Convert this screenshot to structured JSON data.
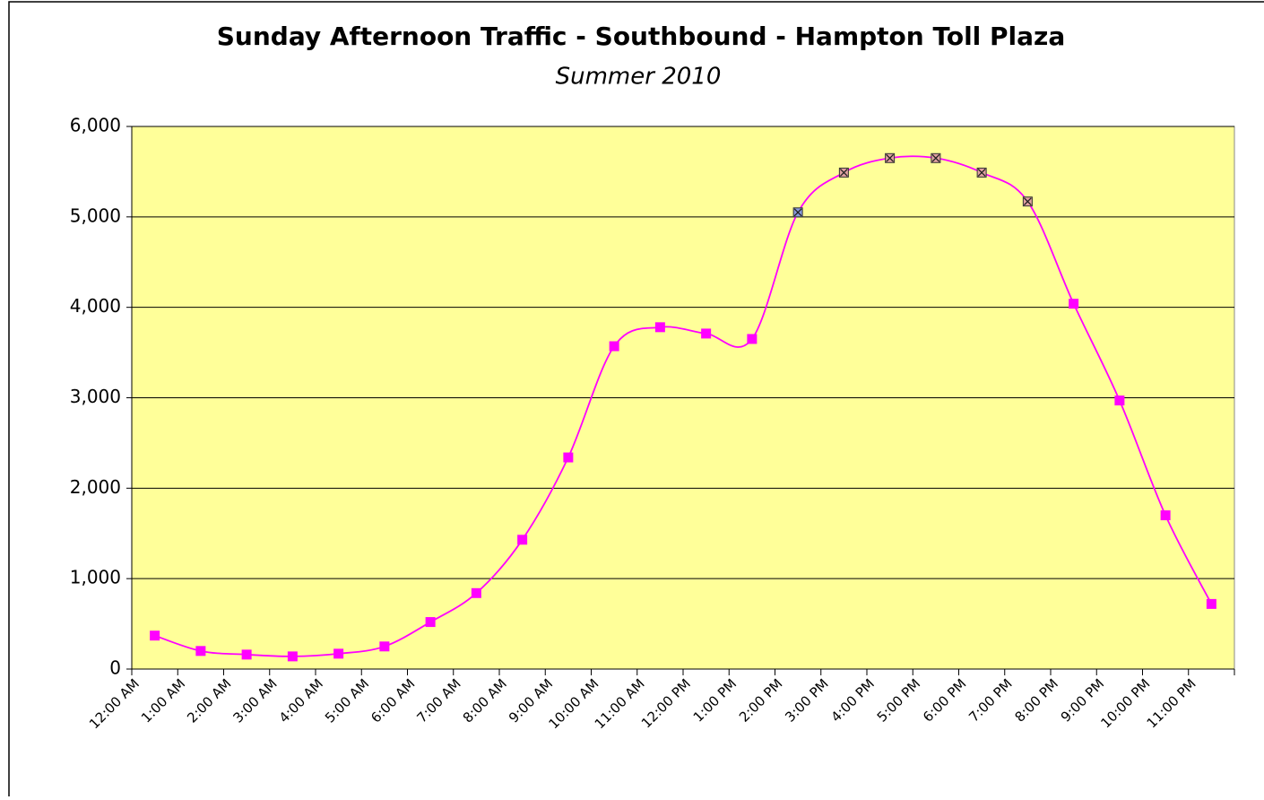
{
  "chart_data": {
    "type": "line",
    "title": "Sunday Afternoon Traffic - Southbound - Hampton Toll Plaza",
    "subtitle": "Summer 2010",
    "categories": [
      "12:00 AM",
      "1:00 AM",
      "2:00 AM",
      "3:00 AM",
      "4:00 AM",
      "5:00 AM",
      "6:00 AM",
      "7:00 AM",
      "8:00 AM",
      "9:00 AM",
      "10:00 AM",
      "11:00 AM",
      "12:00 PM",
      "1:00 PM",
      "2:00 PM",
      "3:00 PM",
      "4:00 PM",
      "5:00 PM",
      "6:00 PM",
      "7:00 PM",
      "8:00 PM",
      "9:00 PM",
      "10:00 PM",
      "11:00 PM"
    ],
    "series": [
      {
        "color": "#ff00ff",
        "values": [
          370,
          200,
          160,
          140,
          170,
          250,
          520,
          840,
          1430,
          2340,
          3570,
          3780,
          3710,
          3650,
          5050,
          5490,
          5650,
          5650,
          5490,
          5170,
          4040,
          2970,
          1700,
          720
        ],
        "marker_colors": [
          "#ff00ff",
          "#ff00ff",
          "#ff00ff",
          "#ff00ff",
          "#ff00ff",
          "#ff00ff",
          "#ff00ff",
          "#ff00ff",
          "#ff00ff",
          "#ff00ff",
          "#ff00ff",
          "#ff00ff",
          "#ff00ff",
          "#ff00ff",
          "#8899dd",
          "#e0a0a0",
          "#e0a0a0",
          "#e0a0a0",
          "#e0a0a0",
          "#e0a0a0",
          "#ff00ff",
          "#ff00ff",
          "#ff00ff",
          "#ff00ff"
        ]
      }
    ],
    "ylim": [
      0,
      6000
    ],
    "yticks": [
      0,
      {
        "value": 1000,
        "label": "1,000"
      },
      {
        "value": 2000,
        "label": "2,000"
      },
      {
        "value": 3000,
        "label": "3,000"
      },
      {
        "value": 4000,
        "label": "4,000"
      },
      {
        "value": 5000,
        "label": "5,000"
      },
      {
        "value": 6000,
        "label": "6,000"
      }
    ],
    "grid": true,
    "plot_background": "#ffff99"
  }
}
